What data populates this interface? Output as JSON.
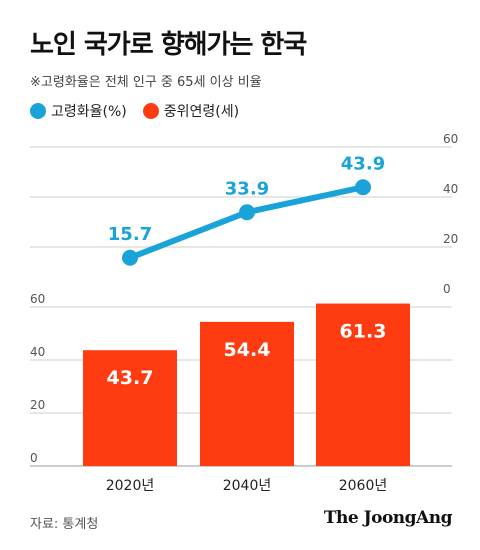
{
  "title": "노인 국가로 향해가는 한국",
  "note": "※고령화율은 전체 인구 중 65세 이상 비율",
  "colors": {
    "line": "#1aa3d8",
    "bar": "#ff3b12",
    "grid": "#cfcfcf",
    "axis": "#555555"
  },
  "chart_data": {
    "type": "bar+line",
    "categories": [
      "2020년",
      "2040년",
      "2060년"
    ],
    "series": [
      {
        "name": "고령화율(%)",
        "type": "line",
        "axis": "right",
        "values": [
          15.7,
          33.9,
          43.9
        ],
        "labels": [
          "15.7",
          "33.9",
          "43.9"
        ],
        "color": "#1aa3d8"
      },
      {
        "name": "중위연령(세)",
        "type": "bar",
        "axis": "left",
        "values": [
          43.7,
          54.4,
          61.3
        ],
        "labels": [
          "43.7",
          "54.4",
          "61.3"
        ],
        "color": "#ff3b12"
      }
    ],
    "right_axis": {
      "range": [
        0,
        60
      ],
      "ticks": [
        "0",
        "20",
        "40",
        "60"
      ]
    },
    "left_axis": {
      "range": [
        0,
        60
      ],
      "ticks": [
        "0",
        "20",
        "40",
        "60"
      ]
    },
    "grid": true,
    "legend": "top-left"
  },
  "source": "자료: 통계청",
  "logo": "The JoongAng"
}
